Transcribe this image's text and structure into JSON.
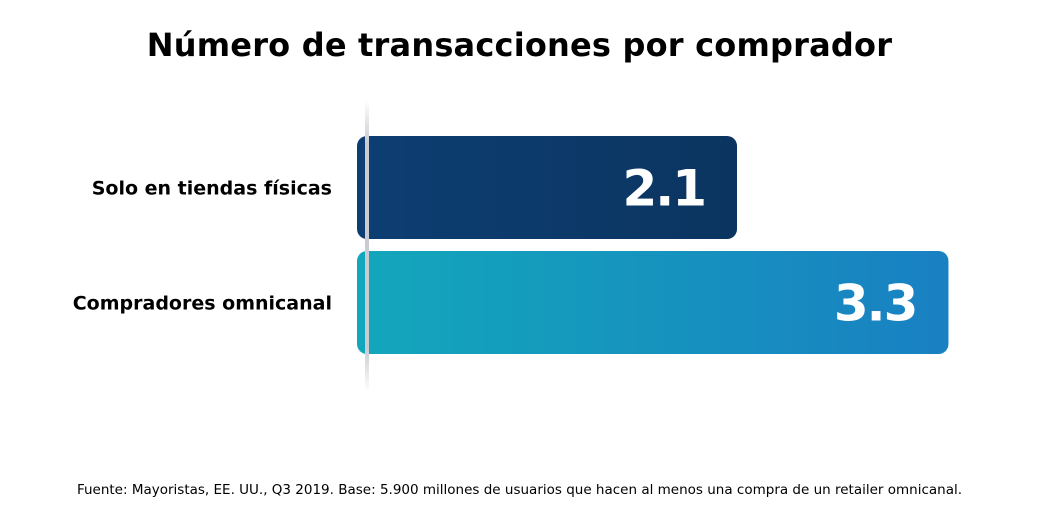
{
  "chart_data": {
    "type": "bar",
    "orientation": "horizontal",
    "title": "Número de transacciones por comprador",
    "categories": [
      "Solo en tiendas físicas",
      "Compradores omnicanal"
    ],
    "values": [
      2.1,
      3.3
    ],
    "value_labels": [
      "2.1",
      "3.3"
    ],
    "xlim": [
      0,
      3.4
    ],
    "grid": false,
    "legend": "none",
    "colors": {
      "bar_1_start": "#0d3e73",
      "bar_1_end": "#0b3560",
      "bar_2_start": "#13a7bb",
      "bar_2_end": "#1980c2",
      "axis": "#c8ccd2"
    }
  },
  "footnote": "Fuente: Mayoristas, EE. UU., Q3 2019. Base: 5.900 millones de usuarios que hacen al menos una compra de un retailer omnicanal."
}
